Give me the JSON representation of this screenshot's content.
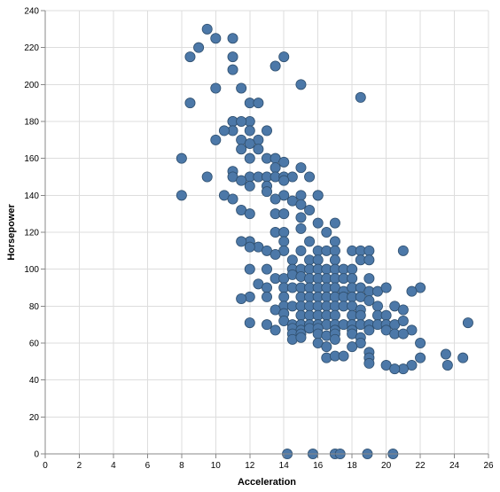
{
  "chart_data": {
    "type": "scatter",
    "title": "",
    "xlabel": "Acceleration",
    "ylabel": "Horsepower",
    "xlim": [
      0,
      26
    ],
    "ylim": [
      0,
      240
    ],
    "xticks": [
      0,
      2,
      4,
      6,
      8,
      10,
      12,
      14,
      16,
      18,
      20,
      22,
      24,
      26
    ],
    "yticks": [
      0,
      20,
      40,
      60,
      80,
      100,
      120,
      140,
      160,
      180,
      200,
      220,
      240
    ],
    "grid": true,
    "point_color": "#4c78a8",
    "series": [
      {
        "points": [
          [
            9.5,
            230
          ],
          [
            10,
            225
          ],
          [
            11,
            225
          ],
          [
            9,
            220
          ],
          [
            8.5,
            215
          ],
          [
            11,
            215
          ],
          [
            14,
            215
          ],
          [
            11,
            208
          ],
          [
            13.5,
            210
          ],
          [
            10,
            198
          ],
          [
            11.5,
            198
          ],
          [
            15,
            200
          ],
          [
            8.5,
            190
          ],
          [
            12,
            190
          ],
          [
            12.5,
            190
          ],
          [
            18.5,
            193
          ],
          [
            11,
            180
          ],
          [
            11,
            180
          ],
          [
            11,
            175
          ],
          [
            12,
            180
          ],
          [
            11.5,
            180
          ],
          [
            10.5,
            175
          ],
          [
            12,
            175
          ],
          [
            13,
            175
          ],
          [
            12.5,
            170
          ],
          [
            10,
            170
          ],
          [
            11.5,
            170
          ],
          [
            12,
            168
          ],
          [
            11.5,
            165
          ],
          [
            12.5,
            165
          ],
          [
            13,
            160
          ],
          [
            8,
            160
          ],
          [
            12,
            160
          ],
          [
            13.5,
            160
          ],
          [
            14,
            158
          ],
          [
            13.5,
            155
          ],
          [
            15,
            155
          ],
          [
            11,
            153
          ],
          [
            9.5,
            150
          ],
          [
            11,
            150
          ],
          [
            12,
            150
          ],
          [
            12.5,
            150
          ],
          [
            13,
            150
          ],
          [
            13.5,
            150
          ],
          [
            14,
            150
          ],
          [
            14.5,
            150
          ],
          [
            15.5,
            150
          ],
          [
            11.5,
            148
          ],
          [
            12,
            145
          ],
          [
            13,
            145
          ],
          [
            14,
            148
          ],
          [
            13,
            142
          ],
          [
            14,
            140
          ],
          [
            15,
            140
          ],
          [
            16,
            140
          ],
          [
            16,
            140
          ],
          [
            8,
            140
          ],
          [
            10.5,
            140
          ],
          [
            11,
            138
          ],
          [
            13.5,
            138
          ],
          [
            14.5,
            137
          ],
          [
            15,
            135
          ],
          [
            15.5,
            132
          ],
          [
            11.5,
            132
          ],
          [
            12,
            130
          ],
          [
            13.5,
            130
          ],
          [
            14,
            130
          ],
          [
            15,
            128
          ],
          [
            16,
            125
          ],
          [
            17,
            125
          ],
          [
            15,
            122
          ],
          [
            16.5,
            120
          ],
          [
            13.5,
            120
          ],
          [
            14,
            120
          ],
          [
            12,
            115
          ],
          [
            12.5,
            112
          ],
          [
            11.5,
            115
          ],
          [
            14,
            115
          ],
          [
            15.5,
            115
          ],
          [
            17,
            115
          ],
          [
            12,
            112
          ],
          [
            13,
            110
          ],
          [
            14,
            110
          ],
          [
            15,
            110
          ],
          [
            16,
            110
          ],
          [
            16.5,
            110
          ],
          [
            17,
            110
          ],
          [
            18,
            110
          ],
          [
            18.5,
            110
          ],
          [
            19,
            110
          ],
          [
            21,
            110
          ],
          [
            13.5,
            108
          ],
          [
            14.5,
            105
          ],
          [
            15.5,
            105
          ],
          [
            16,
            105
          ],
          [
            17,
            105
          ],
          [
            18.5,
            105
          ],
          [
            19,
            105
          ],
          [
            12,
            100
          ],
          [
            13,
            100
          ],
          [
            14.5,
            100
          ],
          [
            15,
            100
          ],
          [
            15.5,
            100
          ],
          [
            16,
            100
          ],
          [
            16.5,
            100
          ],
          [
            17,
            100
          ],
          [
            17.5,
            100
          ],
          [
            18,
            100
          ],
          [
            19,
            95
          ],
          [
            13.5,
            95
          ],
          [
            14,
            95
          ],
          [
            14.5,
            97
          ],
          [
            15,
            96
          ],
          [
            15.5,
            95
          ],
          [
            16,
            95
          ],
          [
            16.5,
            95
          ],
          [
            17,
            95
          ],
          [
            17.5,
            95
          ],
          [
            18,
            95
          ],
          [
            12.5,
            92
          ],
          [
            13,
            90
          ],
          [
            14,
            90
          ],
          [
            14.5,
            90
          ],
          [
            15,
            90
          ],
          [
            15.5,
            90
          ],
          [
            16,
            90
          ],
          [
            16.5,
            90
          ],
          [
            17,
            90
          ],
          [
            17.5,
            88
          ],
          [
            18,
            90
          ],
          [
            18.5,
            90
          ],
          [
            19,
            88
          ],
          [
            19.5,
            88
          ],
          [
            20,
            90
          ],
          [
            22,
            90
          ],
          [
            21.5,
            88
          ],
          [
            12,
            85
          ],
          [
            13,
            85
          ],
          [
            14,
            85
          ],
          [
            15,
            85
          ],
          [
            15.5,
            85
          ],
          [
            16,
            85
          ],
          [
            16.5,
            85
          ],
          [
            17,
            85
          ],
          [
            17.5,
            85
          ],
          [
            18,
            85
          ],
          [
            18.5,
            85
          ],
          [
            19,
            83
          ],
          [
            11.5,
            84
          ],
          [
            14,
            80
          ],
          [
            14.5,
            80
          ],
          [
            15,
            80
          ],
          [
            15.5,
            80
          ],
          [
            16,
            80
          ],
          [
            16.5,
            80
          ],
          [
            17,
            80
          ],
          [
            17.5,
            80
          ],
          [
            18,
            80
          ],
          [
            18.5,
            78
          ],
          [
            19.5,
            80
          ],
          [
            20.5,
            80
          ],
          [
            21,
            78
          ],
          [
            13.5,
            78
          ],
          [
            14,
            76
          ],
          [
            15,
            75
          ],
          [
            15.5,
            75
          ],
          [
            16,
            75
          ],
          [
            16.5,
            75
          ],
          [
            17,
            75
          ],
          [
            18,
            75
          ],
          [
            18.5,
            75
          ],
          [
            19.5,
            75
          ],
          [
            20,
            75
          ],
          [
            14,
            72
          ],
          [
            14.5,
            70
          ],
          [
            15,
            70
          ],
          [
            15.5,
            70
          ],
          [
            16,
            70
          ],
          [
            16.5,
            70
          ],
          [
            17,
            70
          ],
          [
            17.5,
            70
          ],
          [
            18,
            70
          ],
          [
            18.5,
            70
          ],
          [
            19,
            70
          ],
          [
            19.5,
            70
          ],
          [
            20,
            70
          ],
          [
            20.5,
            70
          ],
          [
            21,
            72
          ],
          [
            12,
            71
          ],
          [
            13,
            70
          ],
          [
            14.5,
            68
          ],
          [
            15,
            67
          ],
          [
            15.5,
            68
          ],
          [
            16,
            68
          ],
          [
            17,
            67
          ],
          [
            18,
            67
          ],
          [
            19,
            67
          ],
          [
            20,
            67
          ],
          [
            21.5,
            67
          ],
          [
            24.8,
            71
          ],
          [
            13.5,
            67
          ],
          [
            14.5,
            65
          ],
          [
            15,
            65
          ],
          [
            16,
            65
          ],
          [
            16.5,
            64
          ],
          [
            17,
            65
          ],
          [
            18,
            65
          ],
          [
            18.5,
            63
          ],
          [
            20.5,
            65
          ],
          [
            21,
            65
          ],
          [
            14.5,
            62
          ],
          [
            15,
            63
          ],
          [
            16,
            60
          ],
          [
            17,
            62
          ],
          [
            18.5,
            60
          ],
          [
            22,
            60
          ],
          [
            16.5,
            58
          ],
          [
            18,
            58
          ],
          [
            19,
            55
          ],
          [
            23.5,
            54
          ],
          [
            16.5,
            52
          ],
          [
            17,
            53
          ],
          [
            17.5,
            53
          ],
          [
            19,
            52
          ],
          [
            22,
            52
          ],
          [
            24.5,
            52
          ],
          [
            19,
            49
          ],
          [
            20,
            48
          ],
          [
            21.5,
            48
          ],
          [
            21,
            46
          ],
          [
            20.5,
            46
          ],
          [
            23.6,
            48
          ],
          [
            14.2,
            0
          ],
          [
            15.7,
            0
          ],
          [
            17,
            0
          ],
          [
            17.3,
            0
          ],
          [
            18.9,
            0
          ],
          [
            20.4,
            0
          ]
        ]
      }
    ]
  }
}
